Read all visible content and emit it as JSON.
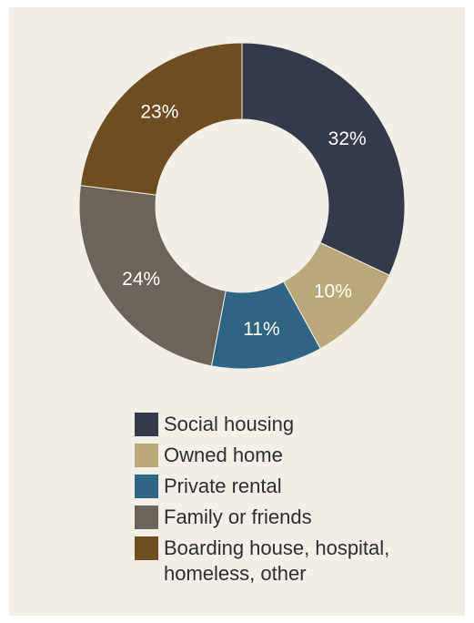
{
  "chart_data": {
    "type": "pie",
    "variant": "donut",
    "legend_position": "bottom",
    "slices": [
      {
        "label": "Social housing",
        "value": 32,
        "value_label": "32%",
        "color": "#343a4a"
      },
      {
        "label": "Owned home",
        "value": 10,
        "value_label": "10%",
        "color": "#b9a97a"
      },
      {
        "label": "Private rental",
        "value": 11,
        "value_label": "11%",
        "color": "#2f6580"
      },
      {
        "label": "Family or friends",
        "value": 24,
        "value_label": "24%",
        "color": "#6b645a"
      },
      {
        "label": "Boarding house, hospital, homeless, other",
        "legend_lines": [
          "Boarding house, hospital,",
          "homeless, other"
        ],
        "value": 23,
        "value_label": "23%",
        "color": "#6e4e20"
      }
    ]
  }
}
